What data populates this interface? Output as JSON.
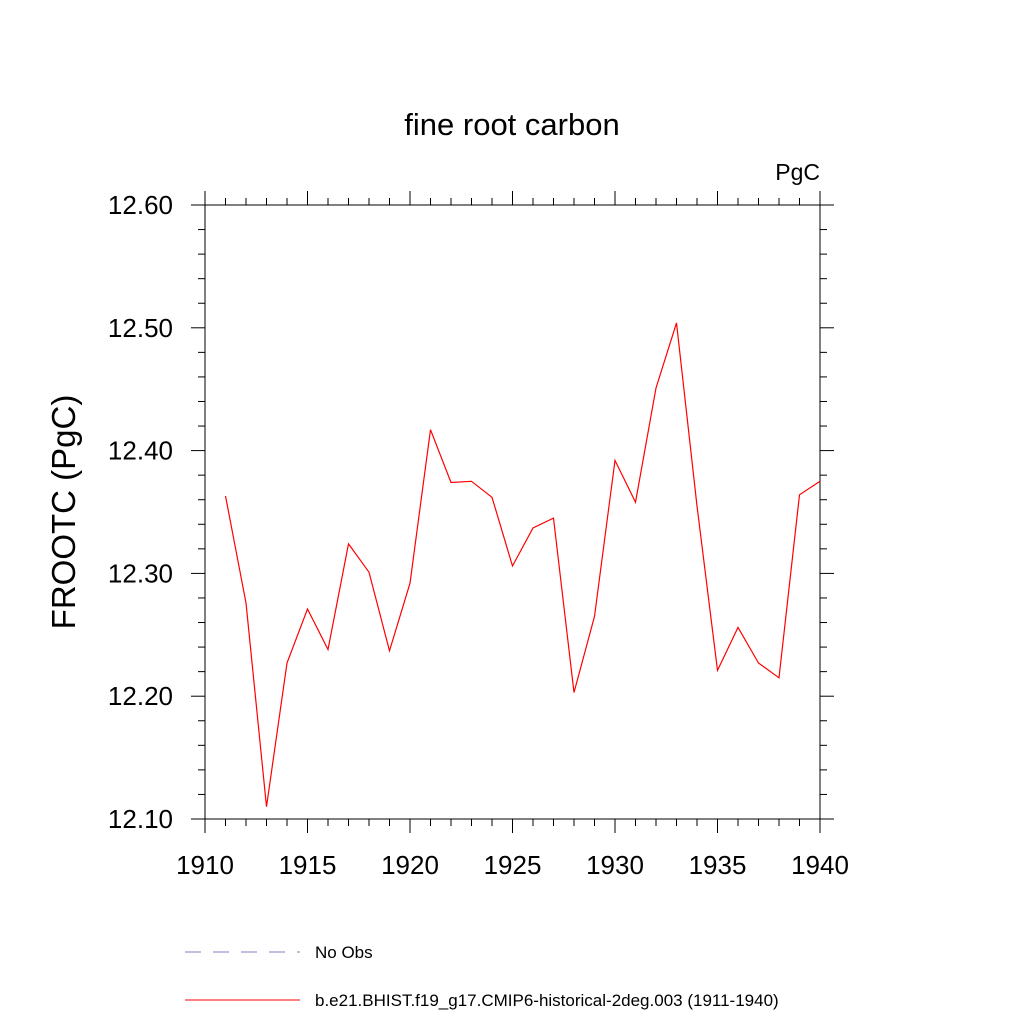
{
  "chart_data": {
    "type": "line",
    "title": "fine root carbon",
    "units": "PgC",
    "ylabel": "FROOTC  (PgC)",
    "xlabel": "",
    "xlim": [
      1910,
      1940
    ],
    "ylim": [
      12.1,
      12.6
    ],
    "x_ticks": [
      1910,
      1915,
      1920,
      1925,
      1930,
      1935,
      1940
    ],
    "x_tick_labels": [
      "1910",
      "1915",
      "1920",
      "1925",
      "1930",
      "1935",
      "1940"
    ],
    "y_ticks": [
      12.1,
      12.2,
      12.3,
      12.4,
      12.5,
      12.6
    ],
    "y_tick_labels": [
      "12.10",
      "12.20",
      "12.30",
      "12.40",
      "12.50",
      "12.60"
    ],
    "grid": false,
    "legend_position": "bottom",
    "series": [
      {
        "name": "b.e21.BHIST.f19_g17.CMIP6-historical-2deg.003 (1911-1940)",
        "color": "#ff0000",
        "dash": "solid",
        "x": [
          1911,
          1912,
          1913,
          1914,
          1915,
          1916,
          1917,
          1918,
          1919,
          1920,
          1921,
          1922,
          1923,
          1924,
          1925,
          1926,
          1927,
          1928,
          1929,
          1930,
          1931,
          1932,
          1933,
          1934,
          1935,
          1936,
          1937,
          1938,
          1939,
          1940
        ],
        "values": [
          12.363,
          12.276,
          12.11,
          12.227,
          12.271,
          12.238,
          12.324,
          12.301,
          12.237,
          12.292,
          12.417,
          12.374,
          12.375,
          12.362,
          12.306,
          12.337,
          12.345,
          12.203,
          12.265,
          12.392,
          12.358,
          12.451,
          12.504,
          12.355,
          12.221,
          12.256,
          12.227,
          12.215,
          12.364,
          12.375
        ]
      }
    ],
    "legend": [
      {
        "label": "No Obs",
        "color": "#7f7fbf",
        "dash": "dashed"
      },
      {
        "label": "b.e21.BHIST.f19_g17.CMIP6-historical-2deg.003 (1911-1940)",
        "color": "#ff0000",
        "dash": "solid"
      }
    ]
  }
}
